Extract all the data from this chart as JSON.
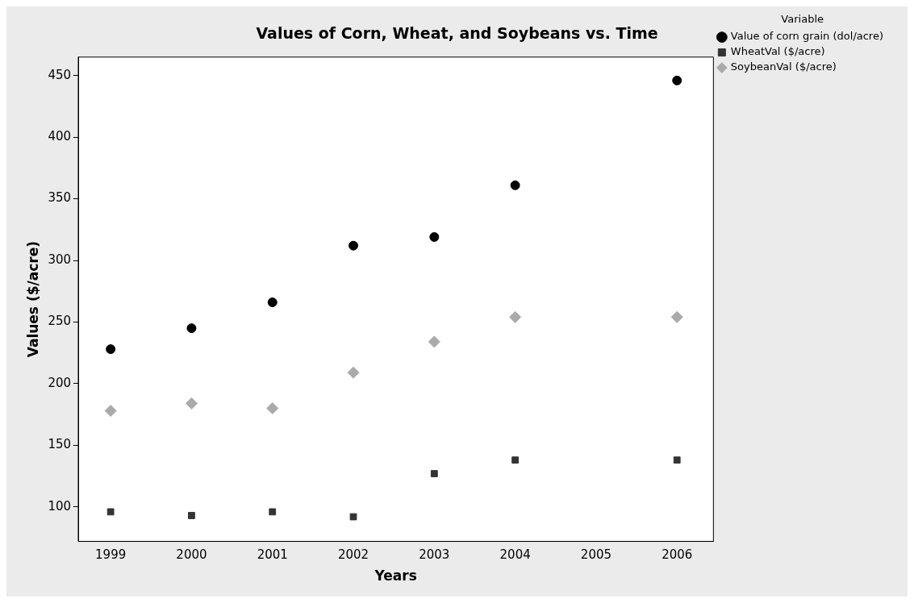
{
  "chart_data": {
    "type": "scatter",
    "title": "Values of Corn, Wheat, and Soybeans vs. Time",
    "xlabel": "Years",
    "ylabel": "Values ($/acre)",
    "legend_title": "Variable",
    "legend": "right",
    "grid": false,
    "xlim": [
      1998.6,
      2006.45
    ],
    "xticks": [
      1999,
      2000,
      2001,
      2002,
      2003,
      2004,
      2005,
      2006
    ],
    "ylim": [
      72,
      465
    ],
    "yticks": [
      100,
      150,
      200,
      250,
      300,
      350,
      400,
      450
    ],
    "series": [
      {
        "name": "Value of corn grain (dol/acre)",
        "color": "#000000",
        "marker": "circle",
        "x": [
          1999,
          2000,
          2001,
          2002,
          2003,
          2004,
          2006
        ],
        "values": [
          228,
          245,
          266,
          312,
          319,
          361,
          446
        ]
      },
      {
        "name": "WheatVal ($/acre)",
        "color": "#333333",
        "marker": "square",
        "x": [
          1999,
          2000,
          2001,
          2002,
          2003,
          2004,
          2006
        ],
        "values": [
          96,
          93,
          96,
          92,
          127,
          138,
          138
        ]
      },
      {
        "name": "SoybeanVal ($/acre)",
        "color": "#aaaaaa",
        "marker": "diamond",
        "x": [
          1999,
          2000,
          2001,
          2002,
          2003,
          2004,
          2006
        ],
        "values": [
          178,
          184,
          180,
          209,
          234,
          254,
          254
        ]
      }
    ]
  }
}
